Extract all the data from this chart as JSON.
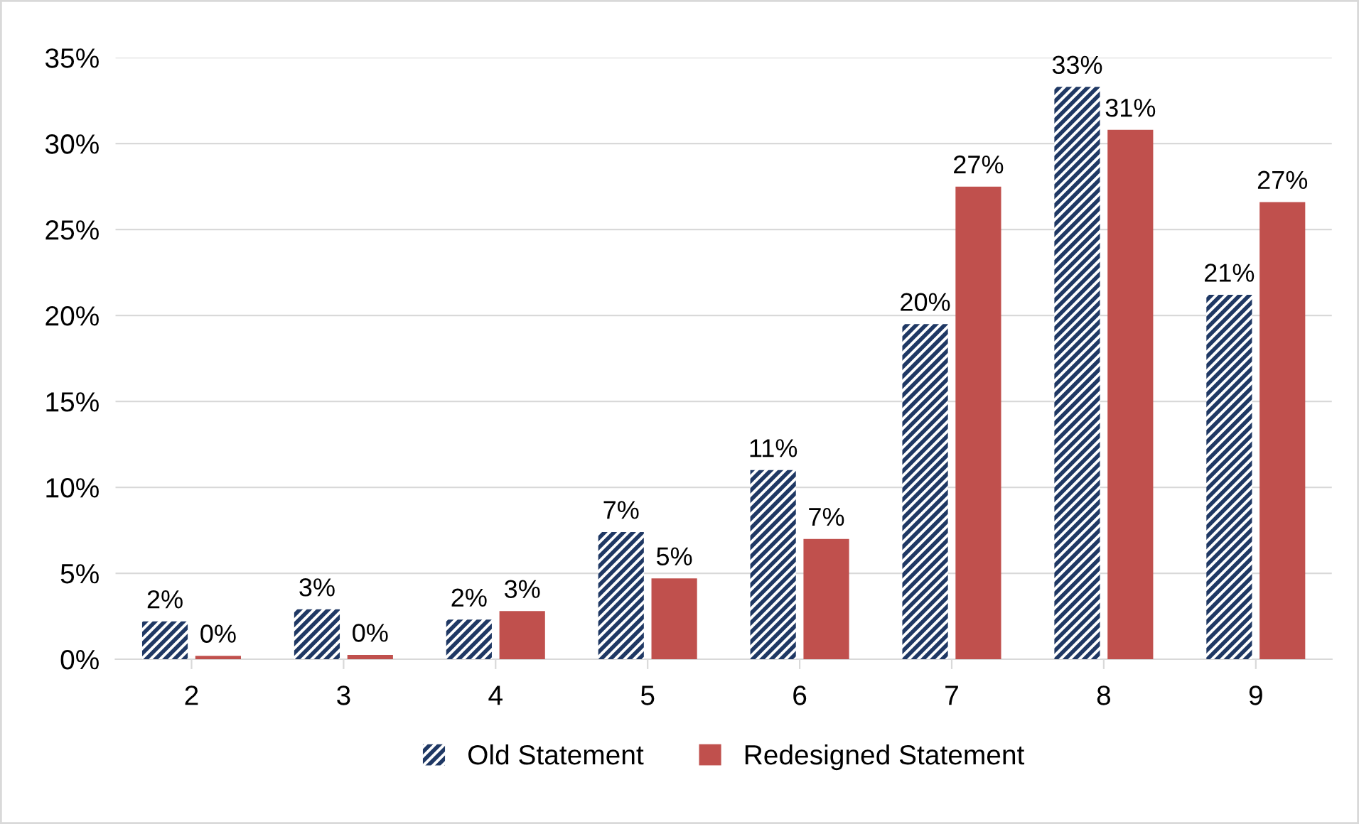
{
  "chart_data": {
    "type": "bar",
    "categories": [
      "2",
      "3",
      "4",
      "5",
      "6",
      "7",
      "8",
      "9"
    ],
    "series": [
      {
        "name": "Old Statement",
        "color": "#1f3864",
        "values": [
          2.2,
          2.9,
          2.3,
          7.4,
          11.0,
          19.5,
          33.3,
          21.2
        ],
        "value_labels": [
          "2%",
          "3%",
          "2%",
          "7%",
          "11%",
          "20%",
          "33%",
          "21%"
        ]
      },
      {
        "name": "Redesigned Statement",
        "color": "#c0504d",
        "values": [
          0.2,
          0.25,
          2.8,
          4.7,
          7.0,
          27.5,
          30.8,
          26.6
        ],
        "value_labels": [
          "0%",
          "0%",
          "3%",
          "5%",
          "7%",
          "27%",
          "31%",
          "27%"
        ]
      }
    ],
    "ylim": [
      0,
      35
    ],
    "yticks": [
      {
        "value": 0,
        "label": "0%"
      },
      {
        "value": 5,
        "label": "5%"
      },
      {
        "value": 10,
        "label": "10%"
      },
      {
        "value": 15,
        "label": "15%"
      },
      {
        "value": 20,
        "label": "20%"
      },
      {
        "value": 25,
        "label": "25%"
      },
      {
        "value": 30,
        "label": "30%"
      },
      {
        "value": 35,
        "label": "35%"
      }
    ],
    "grid": "y",
    "legend": "bottom"
  }
}
